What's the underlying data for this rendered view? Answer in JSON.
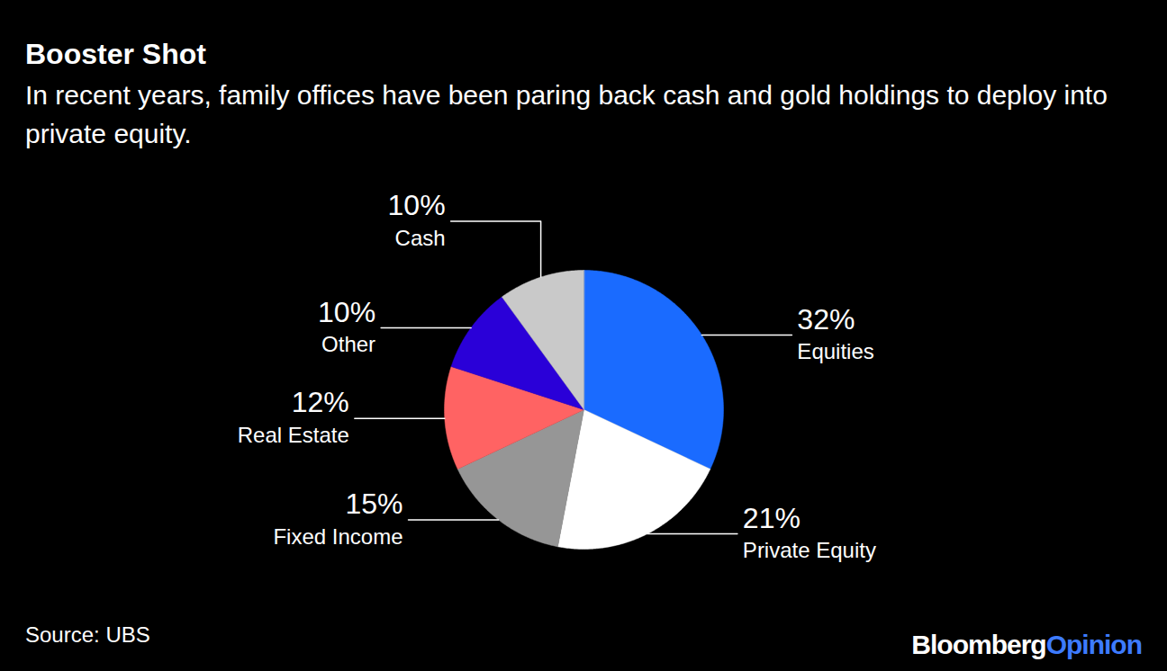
{
  "chart_data": {
    "type": "pie",
    "title": "Booster Shot",
    "subtitle": "In recent years, family offices have been paring back cash and gold holdings to deploy into private equity.",
    "categories": [
      "Equities",
      "Private Equity",
      "Fixed Income",
      "Real Estate",
      "Other",
      "Cash"
    ],
    "values": [
      32,
      21,
      15,
      12,
      10,
      10
    ],
    "value_labels": [
      "32%",
      "21%",
      "15%",
      "12%",
      "10%",
      "10%"
    ],
    "colors": [
      "#1a6bff",
      "#ffffff",
      "#969696",
      "#ff6363",
      "#2a00d8",
      "#c9c9c9"
    ],
    "data_labels": true,
    "source": "Source: UBS",
    "branding": [
      "Bloomberg",
      "Opinion"
    ]
  }
}
